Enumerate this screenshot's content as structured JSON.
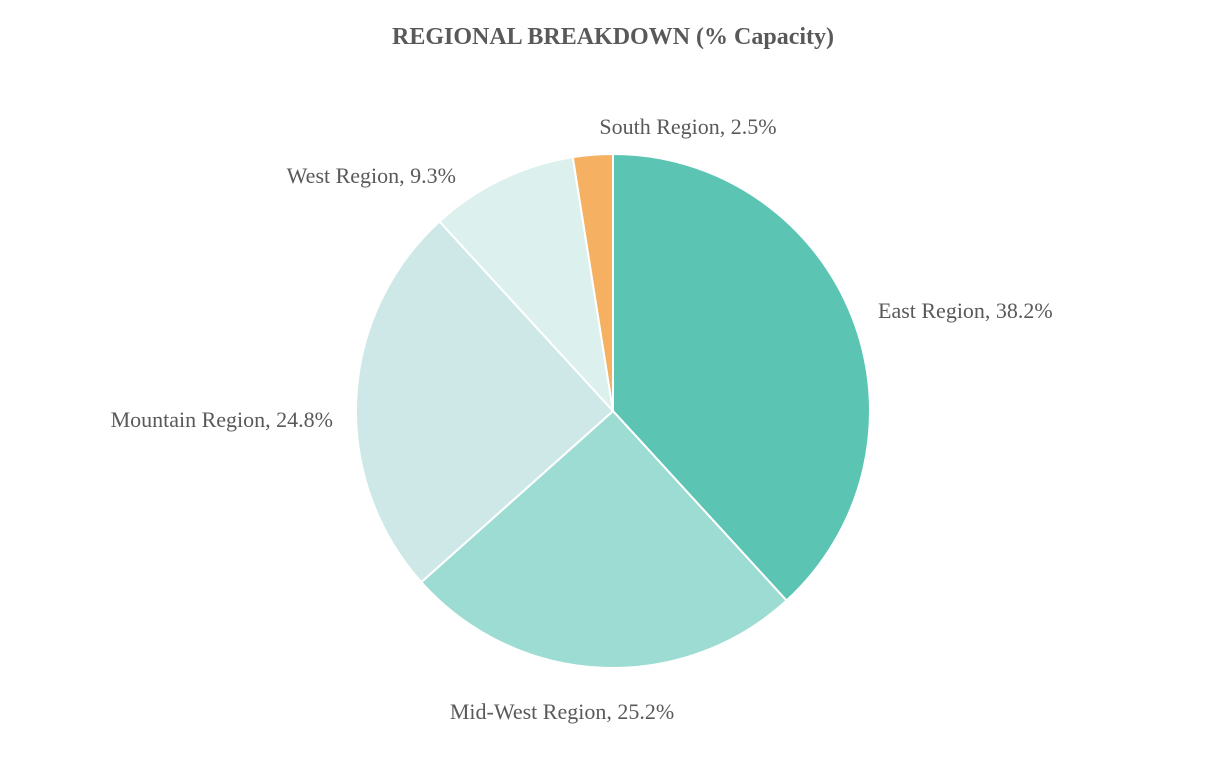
{
  "chart_data": {
    "type": "pie",
    "title": "REGIONAL BREAKDOWN (% Capacity)",
    "slices": [
      {
        "name": "East Region",
        "value": 38.2,
        "label": "East Region, 38.2%",
        "color": "#5bc4b3"
      },
      {
        "name": "Mid-West Region",
        "value": 25.2,
        "label": "Mid-West Region, 25.2%",
        "color": "#9ddcd3"
      },
      {
        "name": "Mountain Region",
        "value": 24.8,
        "label": "Mountain Region, 24.8%",
        "color": "#cde8e7"
      },
      {
        "name": "West Region",
        "value": 9.3,
        "label": "West Region, 9.3%",
        "color": "#dcf1ee"
      },
      {
        "name": "South Region",
        "value": 2.5,
        "label": "South Region, 2.5%",
        "color": "#f5b161"
      }
    ],
    "unit": "%",
    "legend": "none"
  }
}
